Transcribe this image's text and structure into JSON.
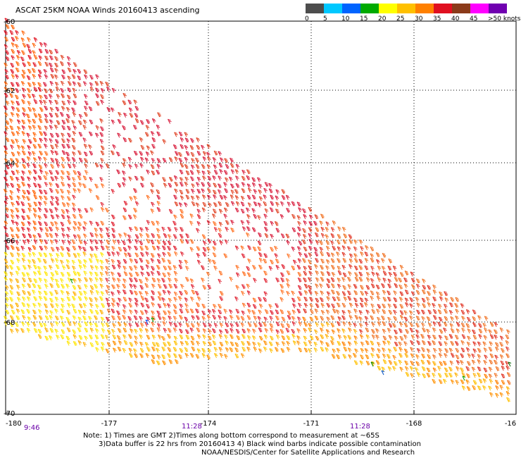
{
  "title": "ASCAT 25KM NOAA Winds 20160413 ascending",
  "legend": {
    "labels": [
      "0",
      "5",
      "10",
      "15",
      "20",
      "25",
      "30",
      "35",
      "40",
      "45",
      ">50 knots"
    ],
    "colors": [
      "#4d4d4d",
      "#00c8ff",
      "#0064ff",
      "#00aa00",
      "#ffff00",
      "#ffc000",
      "#ff8000",
      "#e01020",
      "#8b3a1a",
      "#ff00ff",
      "#7000b0"
    ]
  },
  "axes": {
    "lon_ticks": [
      "-180",
      "-177",
      "-174",
      "-171",
      "-168",
      "-16"
    ],
    "lat_ticks": [
      "-60",
      "-62",
      "-64",
      "-66",
      "-68",
      "-70"
    ],
    "lon_range": [
      -180,
      -165
    ],
    "lat_range": [
      -60,
      -70
    ]
  },
  "times": [
    "9:46",
    "11:28",
    "11:28"
  ],
  "notes": {
    "line1": "Note: 1) Times are GMT 2)Times along bottom correspond to measurement at ~65S",
    "line2": "3)Data buffer is 22 hrs from 20160413 4) Black wind barbs indicate possible contamination",
    "line3": "NOAA/NESDIS/Center for Satellite Applications and Research"
  }
}
